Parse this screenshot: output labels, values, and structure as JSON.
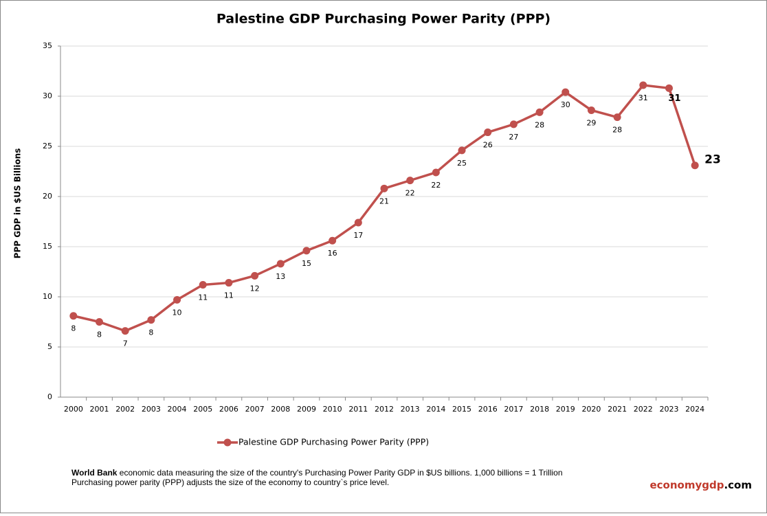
{
  "chart_data": {
    "type": "line",
    "title": "Palestine GDP Purchasing Power Parity (PPP)",
    "y_label": "PPP GDP in $US Billions",
    "categories": [
      "2000",
      "2001",
      "2002",
      "2003",
      "2004",
      "2005",
      "2006",
      "2007",
      "2008",
      "2009",
      "2010",
      "2011",
      "2012",
      "2013",
      "2014",
      "2015",
      "2016",
      "2017",
      "2018",
      "2019",
      "2020",
      "2021",
      "2022",
      "2023",
      "2024"
    ],
    "series": [
      {
        "name": "Palestine GDP Purchasing Power Parity (PPP)",
        "color": "#c0504d",
        "values": [
          8.1,
          7.5,
          6.6,
          7.7,
          9.7,
          11.2,
          11.4,
          12.1,
          13.3,
          14.6,
          15.6,
          17.4,
          20.8,
          21.6,
          22.4,
          24.6,
          26.4,
          27.2,
          28.4,
          30.4,
          28.6,
          27.9,
          31.1,
          30.8,
          23.1
        ],
        "value_labels": [
          "8",
          "8",
          "7",
          "8",
          "10",
          "11",
          "11",
          "12",
          "13",
          "15",
          "16",
          "17",
          "21",
          "22",
          "22",
          "25",
          "26",
          "27",
          "28",
          "30",
          "29",
          "28",
          "31",
          "31",
          "23"
        ]
      }
    ],
    "ylim": [
      0,
      35
    ],
    "yticks": [
      0,
      5,
      10,
      15,
      20,
      25,
      30,
      35
    ],
    "grid": true,
    "legend": "bottom"
  },
  "footer": {
    "source": "World Bank",
    "line1": "economic data  measuring the size of the country's Purchasing Power Parity GDP in $US billions. 1,000 billions = 1 Trillion",
    "line2": "Purchasing power parity (PPP) adjusts the size of the economy to country`s price level.",
    "brand": "economygdp",
    "brand_suffix": ".com"
  }
}
